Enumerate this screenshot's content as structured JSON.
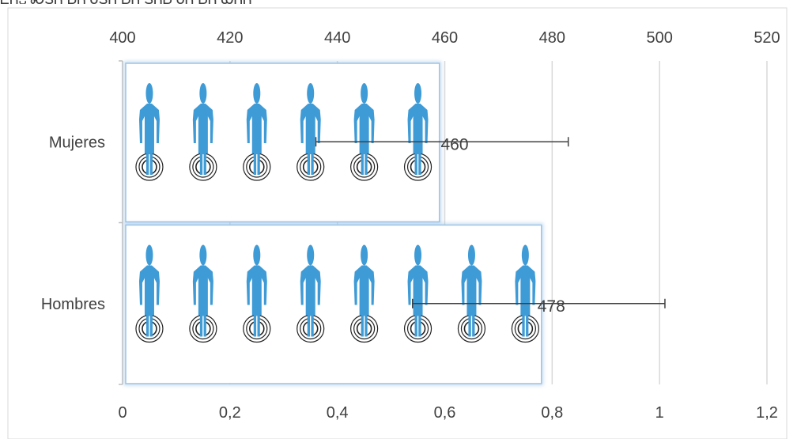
{
  "clipped_title": "ᎬᏲ᎑ ᏍᎦᏲ ᏏᏲ ᏧᎦᏲ ᏏᏲ ᏕᏲᏏ ᏧᏲ ᏏᏲ ᏯᏲᏲ",
  "chart_data": {
    "type": "bar",
    "orientation": "horizontal",
    "bar_style": "pictograph",
    "icon": "person-icon",
    "categories": [
      "Mujeres",
      "Hombres"
    ],
    "series": [
      {
        "axis": "bottom",
        "values": [
          0.59,
          0.78
        ],
        "icon_counts": [
          6,
          8
        ]
      },
      {
        "axis": "top",
        "values": [
          460,
          478
        ],
        "data_labels": [
          "460",
          "478"
        ],
        "error_bars": [
          {
            "low": 436,
            "high": 483
          },
          {
            "low": 454,
            "high": 501
          }
        ]
      }
    ],
    "x_bottom": {
      "min": 0,
      "max": 1.2,
      "ticks": [
        "0",
        "0,2",
        "0,4",
        "0,6",
        "0,8",
        "1",
        "1,2"
      ]
    },
    "x_top": {
      "min": 400,
      "max": 520,
      "ticks": [
        "400",
        "420",
        "440",
        "460",
        "480",
        "500",
        "520"
      ]
    },
    "grid": "vertical",
    "colors": {
      "icon": "#3f9bd6",
      "gridline": "#d9d9d9",
      "axis": "#bfbfbf",
      "error_bar": "#404040",
      "bar_border": "#9dc3e6",
      "text": "#404040"
    }
  }
}
